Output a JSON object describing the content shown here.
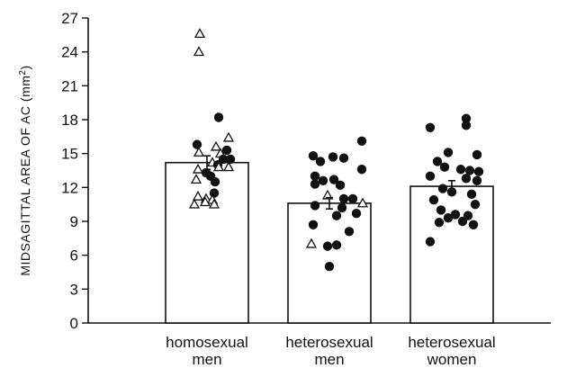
{
  "chart_data": {
    "type": "bar",
    "ylabel": "MIDSAGITTAL AREA OF AC (mm",
    "ylabel_sup": "2",
    "ylabel_close": ")",
    "ylim": [
      0,
      27
    ],
    "yticks": [
      0,
      3,
      6,
      9,
      12,
      15,
      18,
      21,
      24,
      27
    ],
    "grid": false,
    "categories": [
      [
        "homosexual",
        "men"
      ],
      [
        "heterosexual",
        "men"
      ],
      [
        "heterosexual",
        "women"
      ]
    ],
    "means": [
      14.2,
      10.6,
      12.1
    ],
    "errors": [
      0.6,
      0.5,
      0.5
    ],
    "points": [
      [
        {
          "y": 25.6,
          "m": "tri",
          "dx": -8
        },
        {
          "y": 24.0,
          "m": "tri",
          "dx": -9
        },
        {
          "y": 18.2,
          "m": "dot",
          "dx": 13
        },
        {
          "y": 16.4,
          "m": "tri",
          "dx": 24
        },
        {
          "y": 15.8,
          "m": "dot",
          "dx": -11
        },
        {
          "y": 15.6,
          "m": "tri",
          "dx": 10
        },
        {
          "y": 15.3,
          "m": "dot",
          "dx": 22
        },
        {
          "y": 15.1,
          "m": "tri",
          "dx": -9
        },
        {
          "y": 15.0,
          "m": "tri",
          "dx": 15
        },
        {
          "y": 14.5,
          "m": "dot",
          "dx": 18
        },
        {
          "y": 14.5,
          "m": "dot",
          "dx": 26
        },
        {
          "y": 14.2,
          "m": "tri",
          "dx": 6
        },
        {
          "y": 14.0,
          "m": "dot",
          "dx": 12
        },
        {
          "y": 13.8,
          "m": "tri",
          "dx": 24
        },
        {
          "y": 13.8,
          "m": "tri",
          "dx": 13
        },
        {
          "y": 13.6,
          "m": "tri",
          "dx": -10
        },
        {
          "y": 13.3,
          "m": "dot",
          "dx": -1
        },
        {
          "y": 13.0,
          "m": "dot",
          "dx": 4
        },
        {
          "y": 12.7,
          "m": "tri",
          "dx": -12
        },
        {
          "y": 12.5,
          "m": "dot",
          "dx": 9
        },
        {
          "y": 11.5,
          "m": "dot",
          "dx": 8
        },
        {
          "y": 11.2,
          "m": "tri",
          "dx": -10
        },
        {
          "y": 11.0,
          "m": "tri",
          "dx": -1
        },
        {
          "y": 10.9,
          "m": "tri",
          "dx": 6
        },
        {
          "y": 10.7,
          "m": "tri",
          "dx": -2
        },
        {
          "y": 10.5,
          "m": "tri",
          "dx": -14
        },
        {
          "y": 10.5,
          "m": "tri",
          "dx": 8
        }
      ],
      [
        {
          "y": 16.1,
          "m": "dot",
          "dx": 36
        },
        {
          "y": 14.8,
          "m": "dot",
          "dx": -18
        },
        {
          "y": 14.7,
          "m": "dot",
          "dx": 4
        },
        {
          "y": 14.6,
          "m": "dot",
          "dx": 16
        },
        {
          "y": 14.3,
          "m": "dot",
          "dx": -10
        },
        {
          "y": 13.6,
          "m": "dot",
          "dx": 36
        },
        {
          "y": 13.0,
          "m": "dot",
          "dx": -16
        },
        {
          "y": 12.7,
          "m": "dot",
          "dx": 5
        },
        {
          "y": 12.6,
          "m": "dot",
          "dx": -7
        },
        {
          "y": 12.3,
          "m": "dot",
          "dx": -16
        },
        {
          "y": 12.2,
          "m": "dot",
          "dx": 12
        },
        {
          "y": 11.3,
          "m": "tri",
          "dx": -2
        },
        {
          "y": 11.0,
          "m": "dot",
          "dx": 16
        },
        {
          "y": 11.0,
          "m": "dot",
          "dx": 26
        },
        {
          "y": 10.6,
          "m": "tri",
          "dx": 37
        },
        {
          "y": 10.4,
          "m": "dot",
          "dx": -16
        },
        {
          "y": 10.2,
          "m": "dot",
          "dx": 14
        },
        {
          "y": 9.7,
          "m": "dot",
          "dx": 30
        },
        {
          "y": 9.5,
          "m": "dot",
          "dx": 8
        },
        {
          "y": 8.7,
          "m": "dot",
          "dx": -18
        },
        {
          "y": 8.1,
          "m": "dot",
          "dx": 22
        },
        {
          "y": 7.0,
          "m": "tri",
          "dx": -20
        },
        {
          "y": 6.8,
          "m": "dot",
          "dx": -2
        },
        {
          "y": 6.9,
          "m": "dot",
          "dx": 8
        },
        {
          "y": 5.0,
          "m": "dot",
          "dx": 0
        }
      ],
      [
        {
          "y": 18.1,
          "m": "dot",
          "dx": 16
        },
        {
          "y": 17.5,
          "m": "dot",
          "dx": 16
        },
        {
          "y": 17.3,
          "m": "dot",
          "dx": -24
        },
        {
          "y": 15.1,
          "m": "dot",
          "dx": -4
        },
        {
          "y": 14.9,
          "m": "dot",
          "dx": 28
        },
        {
          "y": 14.3,
          "m": "dot",
          "dx": -16
        },
        {
          "y": 13.8,
          "m": "dot",
          "dx": -8
        },
        {
          "y": 13.6,
          "m": "dot",
          "dx": 10
        },
        {
          "y": 13.5,
          "m": "dot",
          "dx": 20
        },
        {
          "y": 13.4,
          "m": "dot",
          "dx": 30
        },
        {
          "y": 13.0,
          "m": "dot",
          "dx": -24
        },
        {
          "y": 12.8,
          "m": "dot",
          "dx": 16
        },
        {
          "y": 12.6,
          "m": "dot",
          "dx": 28
        },
        {
          "y": 11.9,
          "m": "dot",
          "dx": -10
        },
        {
          "y": 11.6,
          "m": "dot",
          "dx": 0
        },
        {
          "y": 11.4,
          "m": "dot",
          "dx": 22
        },
        {
          "y": 10.9,
          "m": "dot",
          "dx": -20
        },
        {
          "y": 10.5,
          "m": "dot",
          "dx": 26
        },
        {
          "y": 10.0,
          "m": "dot",
          "dx": -12
        },
        {
          "y": 9.6,
          "m": "dot",
          "dx": 4
        },
        {
          "y": 9.5,
          "m": "dot",
          "dx": 18
        },
        {
          "y": 9.3,
          "m": "dot",
          "dx": -4
        },
        {
          "y": 9.0,
          "m": "dot",
          "dx": 12
        },
        {
          "y": 8.9,
          "m": "dot",
          "dx": -14
        },
        {
          "y": 8.7,
          "m": "dot",
          "dx": 24
        },
        {
          "y": 7.2,
          "m": "dot",
          "dx": -24
        }
      ]
    ],
    "colors": {
      "ink": "#111111",
      "bar_fill": "#ffffff"
    }
  }
}
